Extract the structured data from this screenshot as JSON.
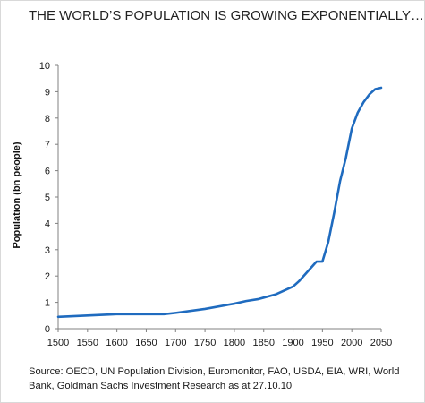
{
  "chart_data": {
    "type": "line",
    "title": "THE WORLD’S POPULATION IS GROWING EXPONENTIALLY…",
    "xlabel": "",
    "ylabel": "Population (bn people)",
    "xlim": [
      1500,
      2050
    ],
    "ylim": [
      0,
      10
    ],
    "x_ticks": [
      1500,
      1550,
      1600,
      1650,
      1700,
      1750,
      1800,
      1850,
      1900,
      1950,
      2000,
      2050
    ],
    "y_ticks": [
      0,
      1,
      2,
      3,
      4,
      5,
      6,
      7,
      8,
      9,
      10
    ],
    "grid": false,
    "legend": "none",
    "line_color": "#1f6bbf",
    "series": [
      {
        "x": [
          1500,
          1550,
          1600,
          1650,
          1680,
          1700,
          1750,
          1800,
          1820,
          1840,
          1850,
          1870,
          1900,
          1910,
          1920,
          1930,
          1940,
          1950,
          1960,
          1970,
          1980,
          1990,
          2000,
          2010,
          2020,
          2030,
          2040,
          2050
        ],
        "values": [
          0.45,
          0.5,
          0.55,
          0.55,
          0.55,
          0.6,
          0.75,
          0.95,
          1.05,
          1.12,
          1.18,
          1.3,
          1.6,
          1.8,
          2.05,
          2.3,
          2.55,
          2.55,
          3.3,
          4.4,
          5.6,
          6.5,
          7.6,
          8.2,
          8.6,
          8.9,
          9.1,
          9.15
        ]
      }
    ]
  },
  "source_text": "Source: OECD, UN Population Division, Euromonitor, FAO, USDA, EIA, WRI, World Bank, Goldman Sachs Investment Research as at 27.10.10"
}
